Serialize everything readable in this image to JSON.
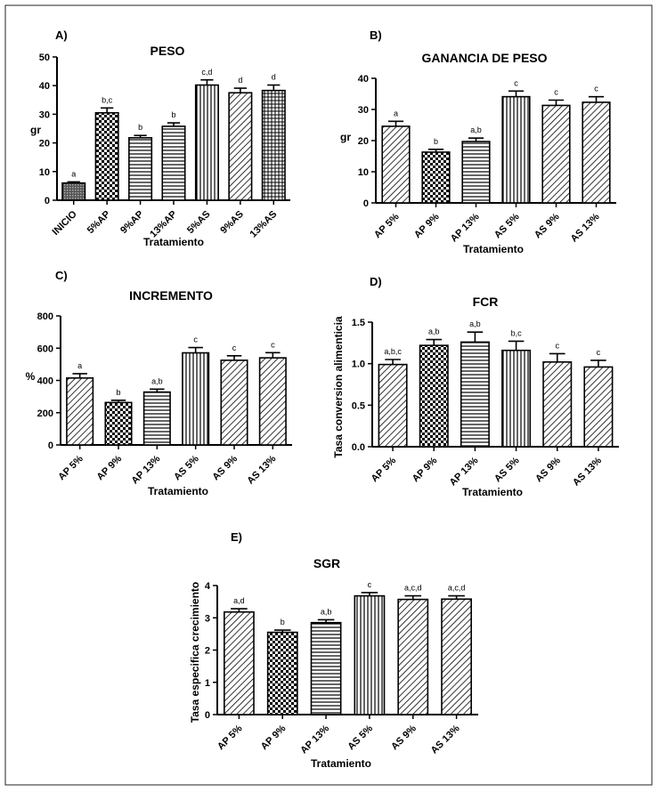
{
  "chart_data": [
    {
      "type": "bar",
      "panel": "A)",
      "title": "PESO",
      "xlabel": "Tratamiento",
      "ylabel": "gr",
      "ylim": [
        0,
        50
      ],
      "yticks": [
        0,
        10,
        20,
        30,
        40,
        50
      ],
      "categories": [
        "INICIO",
        "5%AP",
        "9%AP",
        "13%AP",
        "5%AS",
        "9%AS",
        "13%AS"
      ],
      "values": [
        6,
        30.5,
        21.8,
        25.8,
        40.2,
        37.5,
        38.3
      ],
      "errors": [
        0.4,
        1.7,
        0.8,
        1.2,
        1.8,
        1.6,
        1.9
      ],
      "letters": [
        "a",
        "b,c",
        "b",
        "b",
        "c,d",
        "d",
        "d"
      ],
      "patterns": [
        "dots",
        "checker",
        "hlines",
        "hlines",
        "vlines",
        "diag",
        "grid"
      ]
    },
    {
      "type": "bar",
      "panel": "B)",
      "title": "GANANCIA DE PESO",
      "xlabel": "Tratamiento",
      "ylabel": "gr",
      "ylim": [
        0,
        40
      ],
      "yticks": [
        0,
        10,
        20,
        30,
        40
      ],
      "categories": [
        "AP 5%",
        "AP 9%",
        "AP 13%",
        "AS 5%",
        "AS 9%",
        "AS 13%"
      ],
      "values": [
        24.6,
        16.3,
        19.7,
        34.1,
        31.3,
        32.3
      ],
      "errors": [
        1.6,
        0.9,
        1.1,
        1.8,
        1.7,
        1.8
      ],
      "letters": [
        "a",
        "b",
        "a,b",
        "c",
        "c",
        "c"
      ],
      "patterns": [
        "diag",
        "checker",
        "hlines",
        "vlines",
        "diag",
        "diag"
      ]
    },
    {
      "type": "bar",
      "panel": "C)",
      "title": "INCREMENTO",
      "xlabel": "Tratamiento",
      "ylabel": "%",
      "ylim": [
        0,
        800
      ],
      "yticks": [
        0,
        200,
        400,
        600,
        800
      ],
      "categories": [
        "AP 5%",
        "AP 9%",
        "AP 13%",
        "AS 5%",
        "AS 9%",
        "AS 13%"
      ],
      "values": [
        415,
        263,
        328,
        571,
        525,
        540
      ],
      "errors": [
        27,
        14,
        18,
        33,
        28,
        32
      ],
      "letters": [
        "a",
        "b",
        "a,b",
        "c",
        "c",
        "c"
      ],
      "patterns": [
        "diag",
        "checker",
        "hlines",
        "vlines",
        "diag",
        "diag"
      ]
    },
    {
      "type": "bar",
      "panel": "D)",
      "title": "FCR",
      "xlabel": "Tratamiento",
      "ylabel": "Tasa conversion alimenticia",
      "ylim": [
        0,
        1.5
      ],
      "yticks": [
        "0.0",
        "0.5",
        "1.0",
        "1.5"
      ],
      "categories": [
        "AP 5%",
        "AP 9%",
        "AP 13%",
        "AS 5%",
        "AS 9%",
        "AS 13%"
      ],
      "values": [
        0.99,
        1.22,
        1.26,
        1.16,
        1.02,
        0.96
      ],
      "errors": [
        0.06,
        0.07,
        0.12,
        0.11,
        0.1,
        0.08
      ],
      "letters": [
        "a,b,c",
        "a,b",
        "a,b",
        "b,c",
        "c",
        "c"
      ],
      "patterns": [
        "diag",
        "checker",
        "hlines",
        "vlines",
        "diag",
        "diag"
      ]
    },
    {
      "type": "bar",
      "panel": "E)",
      "title": "SGR",
      "xlabel": "Tratamiento",
      "ylabel": "Tasa especifica crecimiento",
      "ylim": [
        0,
        4
      ],
      "yticks": [
        0,
        1,
        2,
        3,
        4
      ],
      "categories": [
        "AP 5%",
        "AP 9%",
        "AP 13%",
        "AS 5%",
        "AS 9%",
        "AS 13%"
      ],
      "values": [
        3.18,
        2.55,
        2.85,
        3.68,
        3.57,
        3.58
      ],
      "errors": [
        0.1,
        0.07,
        0.09,
        0.1,
        0.11,
        0.1
      ],
      "letters": [
        "a,d",
        "b",
        "a,b",
        "c",
        "a,c,d",
        "a,c,d"
      ],
      "patterns": [
        "diag",
        "checker",
        "hlines",
        "vlines",
        "diag",
        "diag"
      ]
    }
  ]
}
